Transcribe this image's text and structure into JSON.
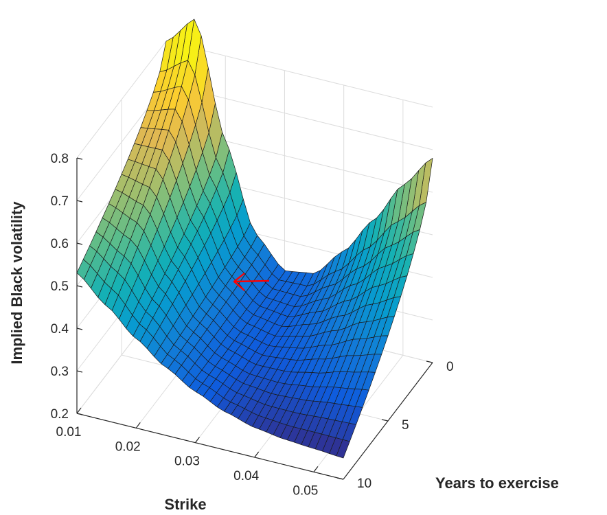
{
  "chart_data": {
    "type": "surface",
    "title": "",
    "xlabel": "Strike",
    "ylabel": "Years to exercise",
    "zlabel": "Implied Black volatility",
    "x_ticks": [
      "0.01",
      "0.02",
      "0.03",
      "0.04",
      "0.05"
    ],
    "y_ticks": [
      "0",
      "5",
      "10"
    ],
    "z_ticks": [
      "0.2",
      "0.3",
      "0.4",
      "0.5",
      "0.6",
      "0.7",
      "0.8"
    ],
    "xlim": [
      0.01,
      0.055
    ],
    "ylim": [
      0,
      10
    ],
    "zlim": [
      0.2,
      0.8
    ],
    "grid": true,
    "colormap": "parula",
    "strike_edge_at_t0": {
      "x": [
        0.01,
        0.015,
        0.02,
        0.025,
        0.03,
        0.035,
        0.04,
        0.045,
        0.05,
        0.055
      ],
      "z": [
        0.8,
        0.87,
        0.6,
        0.4,
        0.33,
        0.34,
        0.41,
        0.5,
        0.6,
        0.68
      ]
    },
    "strike_edge_at_t10": {
      "x": [
        0.01,
        0.015,
        0.02,
        0.025,
        0.03,
        0.035,
        0.04,
        0.045,
        0.05,
        0.055
      ],
      "z": [
        0.53,
        0.47,
        0.41,
        0.36,
        0.32,
        0.29,
        0.27,
        0.26,
        0.255,
        0.25
      ]
    },
    "annotation_color": "#ff0000"
  }
}
